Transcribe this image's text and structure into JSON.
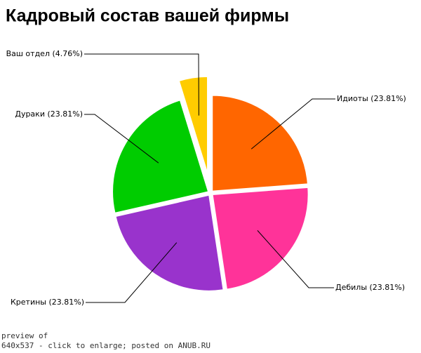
{
  "chart_data": {
    "type": "pie",
    "title": "Кадровый состав вашей фирмы",
    "values": [
      23.81,
      23.81,
      23.81,
      23.81,
      4.76
    ],
    "value_labels": [
      "Идиоты (23.81%)",
      "Дебилы (23.81%)",
      "Кретины (23.81%)",
      "Дураки (23.81%)",
      "Ваш отдел (4.76%)"
    ],
    "colors": [
      "#ff6600",
      "#ff3399",
      "#9933cc",
      "#00cc00",
      "#ffcc00"
    ]
  },
  "footer": {
    "lines": [
      "preview of",
      "640x537 - click to enlarge; posted on ANUB.RU"
    ]
  }
}
